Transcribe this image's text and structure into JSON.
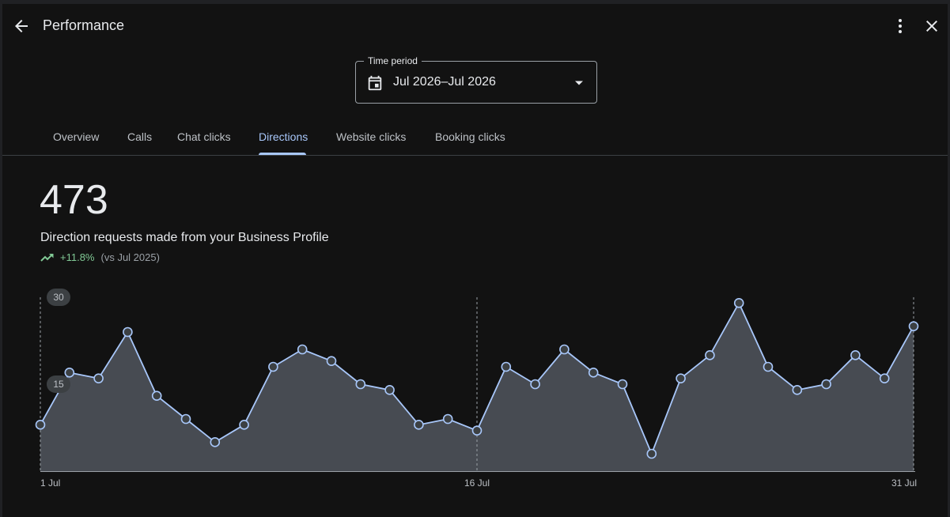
{
  "header": {
    "title": "Performance",
    "icons": [
      "arrow-back-icon",
      "more-vert-icon",
      "close-icon"
    ]
  },
  "time_period": {
    "label": "Time period",
    "value": "Jul 2026–Jul 2026",
    "icon": "calendar-icon"
  },
  "tabs": [
    {
      "label": "Overview",
      "active": false
    },
    {
      "label": "Calls",
      "active": false
    },
    {
      "label": "Chat clicks",
      "active": false
    },
    {
      "label": "Directions",
      "active": true
    },
    {
      "label": "Website clicks",
      "active": false
    },
    {
      "label": "Booking clicks",
      "active": false
    }
  ],
  "summary": {
    "value": "473",
    "description": "Direction requests made from your Business Profile",
    "change": "+11.8%",
    "comparison": "(vs Jul 2025)"
  },
  "chart_data": {
    "type": "area",
    "y_ticks": [
      "30",
      "15"
    ],
    "x_tick_labels": [
      "1 Jul",
      "16 Jul",
      "31 Jul"
    ],
    "ylim": [
      0,
      30
    ],
    "x": [
      1,
      2,
      3,
      4,
      5,
      6,
      7,
      8,
      9,
      10,
      11,
      12,
      13,
      14,
      15,
      16,
      17,
      18,
      19,
      20,
      21,
      22,
      23,
      24,
      25,
      26,
      27,
      28,
      29,
      30,
      31
    ],
    "values": [
      8,
      17,
      16,
      24,
      13,
      9,
      5,
      8,
      18,
      21,
      19,
      15,
      14,
      8,
      9,
      7,
      18,
      15,
      21,
      17,
      15,
      3,
      16,
      20,
      29,
      18,
      14,
      15,
      20,
      16,
      25
    ],
    "colors": {
      "line": "#a8c7fa",
      "fill": "#474b52",
      "point_fill": "#3c4043"
    }
  }
}
